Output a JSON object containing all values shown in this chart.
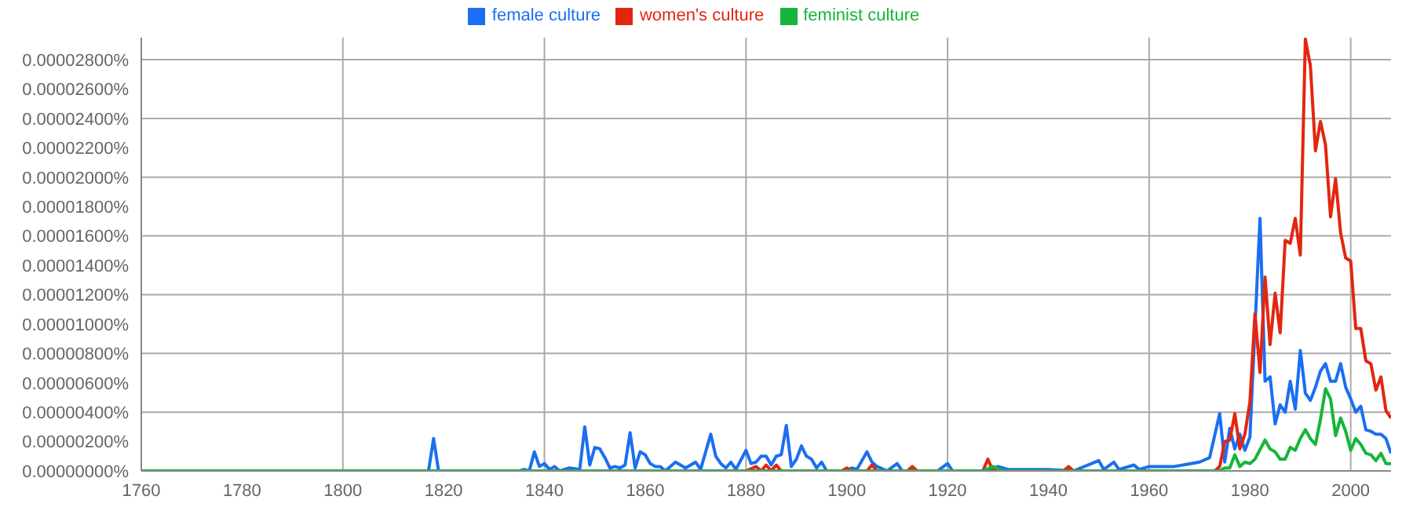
{
  "chart_data": {
    "type": "line",
    "legend": "top",
    "grid": true,
    "xlim": [
      1760,
      2008
    ],
    "xticks": [
      1760,
      1780,
      1800,
      1820,
      1840,
      1860,
      1880,
      1900,
      1920,
      1940,
      1960,
      1980,
      2000
    ],
    "ylim": [
      0,
      2.95e-05
    ],
    "yticks": [
      {
        "value": 0,
        "label": "0.00000000%"
      },
      {
        "value": 2e-06,
        "label": "0.00000200%"
      },
      {
        "value": 4e-06,
        "label": "0.00000400%"
      },
      {
        "value": 6e-06,
        "label": "0.00000600%"
      },
      {
        "value": 8e-06,
        "label": "0.00000800%"
      },
      {
        "value": 1e-05,
        "label": "0.00001000%"
      },
      {
        "value": 1.2e-05,
        "label": "0.00001200%"
      },
      {
        "value": 1.4e-05,
        "label": "0.00001400%"
      },
      {
        "value": 1.6e-05,
        "label": "0.00001600%"
      },
      {
        "value": 1.8e-05,
        "label": "0.00001800%"
      },
      {
        "value": 2e-05,
        "label": "0.00002000%"
      },
      {
        "value": 2.2e-05,
        "label": "0.00002200%"
      },
      {
        "value": 2.4e-05,
        "label": "0.00002400%"
      },
      {
        "value": 2.6e-05,
        "label": "0.00002600%"
      },
      {
        "value": 2.8e-05,
        "label": "0.00002800%"
      }
    ],
    "series": [
      {
        "name": "female culture",
        "color": "#1c6ef2",
        "x": [
          1760,
          1817,
          1818,
          1819,
          1835,
          1836,
          1837,
          1838,
          1839,
          1840,
          1841,
          1842,
          1843,
          1845,
          1847,
          1848,
          1849,
          1850,
          1851,
          1852,
          1853,
          1854,
          1855,
          1856,
          1857,
          1858,
          1859,
          1860,
          1861,
          1862,
          1863,
          1864,
          1866,
          1867,
          1868,
          1869,
          1870,
          1871,
          1873,
          1874,
          1875,
          1876,
          1877,
          1878,
          1880,
          1881,
          1882,
          1883,
          1884,
          1885,
          1886,
          1887,
          1888,
          1889,
          1890,
          1891,
          1892,
          1893,
          1894,
          1895,
          1896,
          1900,
          1901,
          1902,
          1904,
          1905,
          1906,
          1908,
          1910,
          1911,
          1918,
          1920,
          1921,
          1928,
          1930,
          1932,
          1940,
          1945,
          1950,
          1951,
          1953,
          1954,
          1957,
          1958,
          1960,
          1965,
          1970,
          1972,
          1974,
          1975,
          1976,
          1977,
          1978,
          1979,
          1980,
          1982,
          1983,
          1984,
          1985,
          1986,
          1987,
          1988,
          1989,
          1990,
          1991,
          1992,
          1993,
          1994,
          1995,
          1996,
          1997,
          1998,
          1999,
          2000,
          2001,
          2002,
          2003,
          2004,
          2005,
          2006,
          2007,
          2008
        ],
        "values": [
          0,
          0,
          2.2e-06,
          0,
          0,
          1e-07,
          0,
          1.3e-06,
          3e-07,
          5e-07,
          1e-07,
          3e-07,
          0,
          2e-07,
          1e-07,
          3e-06,
          4e-07,
          1.6e-06,
          1.5e-06,
          9e-07,
          2e-07,
          3e-07,
          2e-07,
          4e-07,
          2.6e-06,
          2e-07,
          1.3e-06,
          1.1e-06,
          5e-07,
          3e-07,
          3e-07,
          0,
          6e-07,
          4e-07,
          2e-07,
          4e-07,
          6e-07,
          1e-07,
          2.5e-06,
          1e-06,
          5e-07,
          2e-07,
          6e-07,
          1e-07,
          1.4e-06,
          5e-07,
          6e-07,
          1e-06,
          1e-06,
          4e-07,
          1e-06,
          1.1e-06,
          3.1e-06,
          3e-07,
          8e-07,
          1.7e-06,
          1e-06,
          8e-07,
          2e-07,
          6e-07,
          0,
          0,
          2e-07,
          1e-07,
          1.3e-06,
          6e-07,
          3e-07,
          0,
          5e-07,
          0,
          0,
          5e-07,
          0,
          0,
          3e-07,
          1e-07,
          1e-07,
          0,
          7e-07,
          1e-07,
          6e-07,
          1e-07,
          4e-07,
          1e-07,
          3e-07,
          3e-07,
          6e-07,
          9e-07,
          3.9e-06,
          6e-07,
          2.9e-06,
          1.5e-06,
          2.5e-06,
          1.4e-06,
          2.3e-06,
          1.72e-05,
          6.1e-06,
          6.4e-06,
          3.2e-06,
          4.5e-06,
          4e-06,
          6.1e-06,
          4.2e-06,
          8.2e-06,
          5.3e-06,
          4.8e-06,
          5.7e-06,
          6.8e-06,
          7.3e-06,
          6.1e-06,
          6.1e-06,
          7.3e-06,
          5.7e-06,
          4.9e-06,
          4e-06,
          4.4e-06,
          2.8e-06,
          2.7e-06,
          2.5e-06,
          2.5e-06,
          2.2e-06,
          1.2e-06
        ]
      },
      {
        "name": "women's culture",
        "color": "#e3260f",
        "x": [
          1760,
          1880,
          1882,
          1883,
          1884,
          1885,
          1886,
          1887,
          1899,
          1900,
          1901,
          1904,
          1905,
          1906,
          1912,
          1913,
          1914,
          1927,
          1928,
          1929,
          1943,
          1944,
          1945,
          1973,
          1974,
          1975,
          1976,
          1977,
          1978,
          1979,
          1980,
          1981,
          1982,
          1983,
          1984,
          1985,
          1986,
          1987,
          1988,
          1989,
          1990,
          1991,
          1992,
          1993,
          1994,
          1995,
          1996,
          1997,
          1998,
          1999,
          2000,
          2001,
          2002,
          2003,
          2004,
          2005,
          2006,
          2007,
          2008
        ],
        "values": [
          0,
          0,
          3e-07,
          0,
          4e-07,
          0,
          4e-07,
          0,
          0,
          2e-07,
          0,
          0,
          4e-07,
          0,
          0,
          3e-07,
          0,
          0,
          8e-07,
          0,
          0,
          3e-07,
          0,
          0,
          3e-07,
          2e-06,
          2.1e-06,
          3.9e-06,
          1.5e-06,
          2.5e-06,
          4.7e-06,
          1.07e-05,
          6.7e-06,
          1.32e-05,
          8.6e-06,
          1.21e-05,
          9.4e-06,
          1.57e-05,
          1.55e-05,
          1.72e-05,
          1.47e-05,
          2.94e-05,
          2.76e-05,
          2.18e-05,
          2.38e-05,
          2.22e-05,
          1.73e-05,
          1.99e-05,
          1.62e-05,
          1.45e-05,
          1.43e-05,
          9.7e-06,
          9.7e-06,
          7.5e-06,
          7.3e-06,
          5.5e-06,
          6.4e-06,
          4.1e-06,
          3.6e-06
        ]
      },
      {
        "name": "feminist culture",
        "color": "#17b53a",
        "x": [
          1760,
          1927,
          1929,
          1931,
          1974,
          1975,
          1976,
          1977,
          1978,
          1979,
          1980,
          1981,
          1983,
          1984,
          1985,
          1986,
          1987,
          1988,
          1989,
          1990,
          1991,
          1992,
          1993,
          1994,
          1995,
          1996,
          1997,
          1998,
          1999,
          2000,
          2001,
          2002,
          2003,
          2004,
          2005,
          2006,
          2007,
          2008
        ],
        "values": [
          0,
          0,
          3e-07,
          0,
          0,
          2e-07,
          2e-07,
          1.1e-06,
          3e-07,
          6e-07,
          5e-07,
          8e-07,
          2.1e-06,
          1.5e-06,
          1.3e-06,
          8e-07,
          8e-07,
          1.6e-06,
          1.4e-06,
          2.2e-06,
          2.8e-06,
          2.2e-06,
          1.8e-06,
          3.5e-06,
          5.6e-06,
          4.9e-06,
          2.4e-06,
          3.6e-06,
          2.7e-06,
          1.4e-06,
          2.2e-06,
          1.8e-06,
          1.2e-06,
          1.1e-06,
          7e-07,
          1.2e-06,
          5e-07,
          5e-07
        ]
      }
    ]
  }
}
